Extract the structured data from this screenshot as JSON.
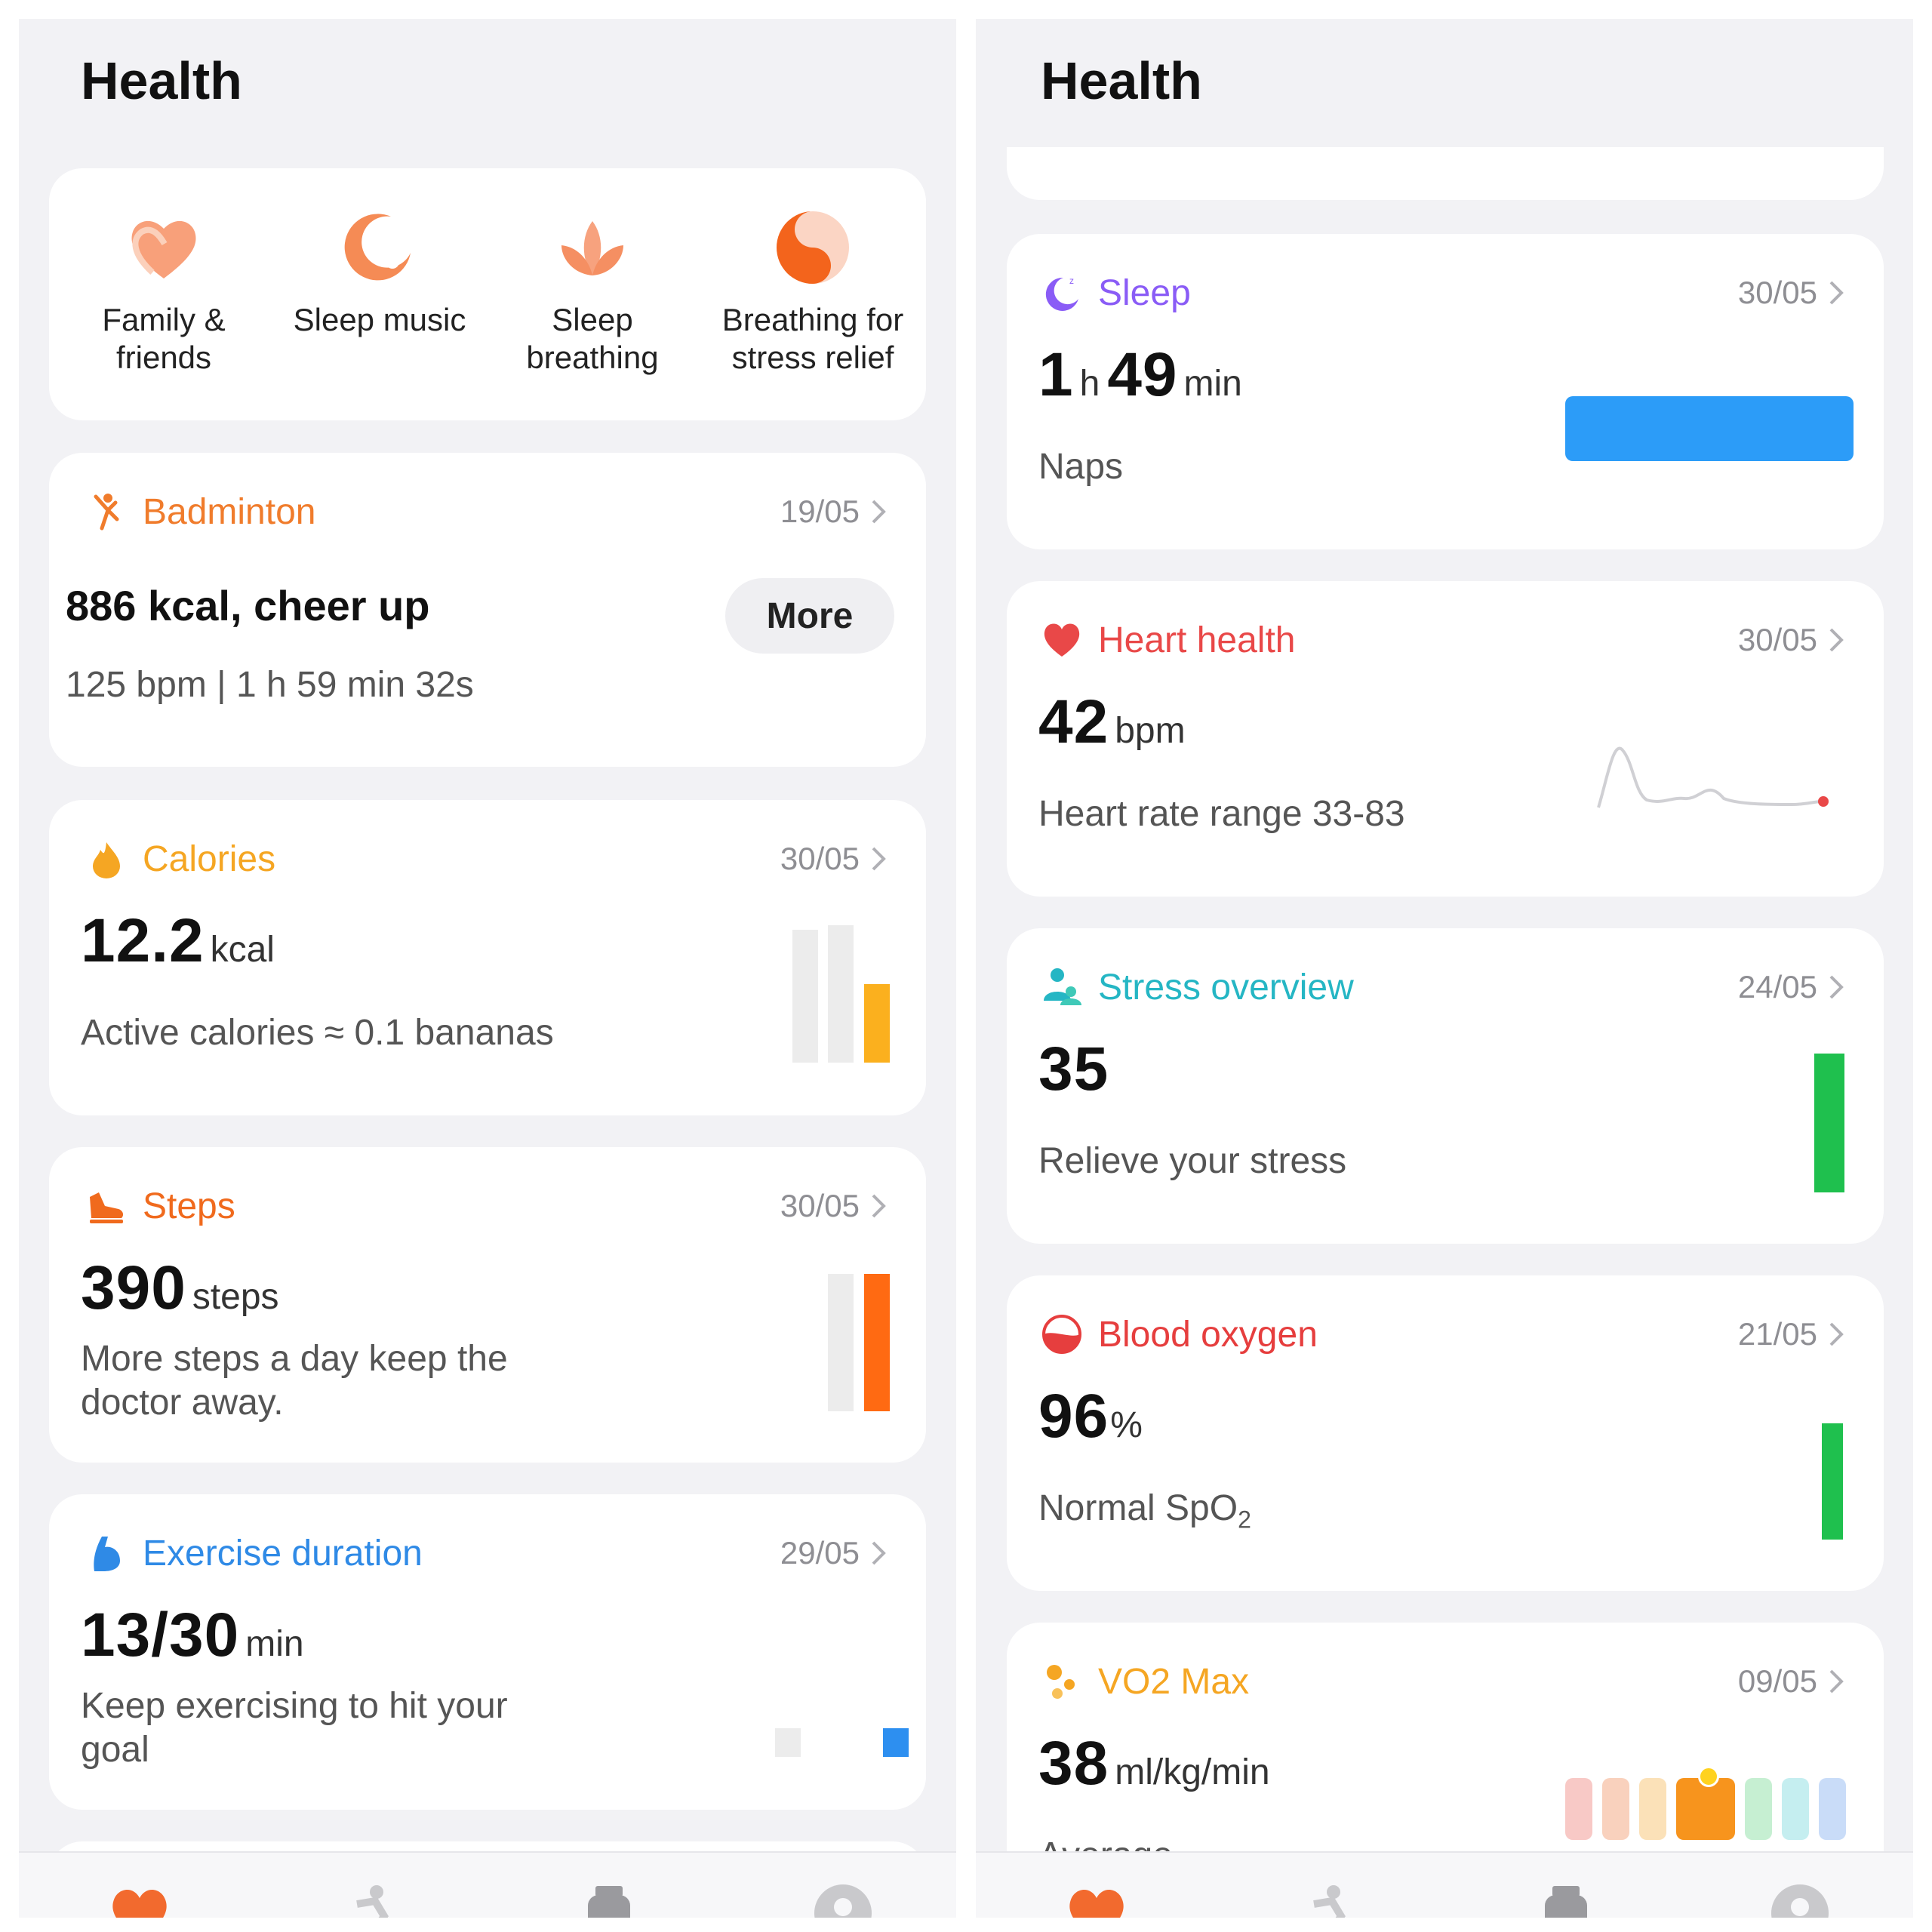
{
  "left": {
    "title": "Health",
    "shortcuts": [
      {
        "label_1": "Family &",
        "label_2": "friends",
        "icon": "heart-hands-icon"
      },
      {
        "label_1": "Sleep music",
        "label_2": "",
        "icon": "music-note-icon"
      },
      {
        "label_1": "Sleep",
        "label_2": "breathing",
        "icon": "lotus-icon"
      },
      {
        "label_1": "Breathing for",
        "label_2": "stress relief",
        "icon": "yin-yang-icon"
      }
    ],
    "badminton": {
      "title": "Badminton",
      "date": "19/05",
      "headline": "886 kcal, cheer up",
      "button": "More",
      "details": "125 bpm | 1 h 59 min 32s"
    },
    "calories": {
      "title": "Calories",
      "date": "30/05",
      "value": "12.2",
      "unit": "kcal",
      "sub": "Active calories ≈ 0.1 bananas"
    },
    "steps": {
      "title": "Steps",
      "date": "30/05",
      "value": "390",
      "unit": "steps",
      "sub": "More steps a day keep the doctor away."
    },
    "exercise": {
      "title": "Exercise duration",
      "date": "29/05",
      "value": "13/30",
      "unit": "min",
      "sub": "Keep exercising to hit your goal"
    }
  },
  "right": {
    "title": "Health",
    "sleep": {
      "title": "Sleep",
      "date": "30/05",
      "hours": "1",
      "h_unit": "h",
      "minutes": "49",
      "m_unit": "min",
      "sub": "Naps"
    },
    "heart": {
      "title": "Heart health",
      "date": "30/05",
      "value": "42",
      "unit": "bpm",
      "sub": "Heart rate range 33-83"
    },
    "stress": {
      "title": "Stress overview",
      "date": "24/05",
      "value": "35",
      "sub": "Relieve your stress"
    },
    "oxygen": {
      "title": "Blood oxygen",
      "date": "21/05",
      "value": "96",
      "unit": "%",
      "sub_main": "Normal SpO",
      "sub_sub": "2"
    },
    "vo2": {
      "title": "VO2 Max",
      "date": "09/05",
      "value": "38",
      "unit": "ml/kg/min",
      "sub": "Average"
    }
  },
  "colors": {
    "badminton": "#f07c2c",
    "calories": "#f5a623",
    "steps": "#f06a1d",
    "exercise": "#2f8ae6",
    "sleep": "#8a5cf6",
    "heart": "#e94848",
    "stress": "#25b6c4",
    "oxygen": "#e63e3e",
    "vo2": "#f5a623"
  },
  "nav_icons": [
    "health-tab-icon",
    "exercise-tab-icon",
    "device-tab-icon",
    "profile-tab-icon"
  ]
}
